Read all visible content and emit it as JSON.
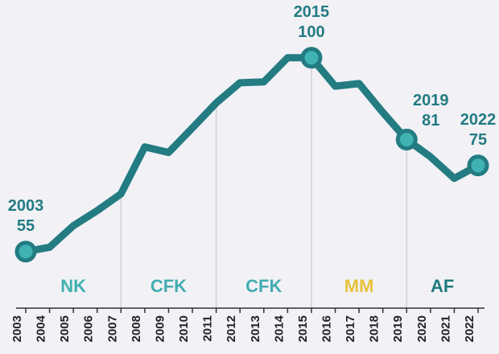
{
  "chart_data": {
    "type": "line",
    "categories": [
      "2003",
      "2004",
      "2005",
      "2006",
      "2007",
      "2008",
      "2009",
      "2010",
      "2011",
      "2012",
      "2013",
      "2014",
      "2015",
      "2016",
      "2017",
      "2018",
      "2019",
      "2020",
      "2021",
      "2022"
    ],
    "values": [
      55,
      56,
      61,
      64.5,
      68.4,
      79.3,
      78,
      83.7,
      89.5,
      94.2,
      94.4,
      100,
      100,
      93.4,
      94,
      87.3,
      81,
      77,
      72,
      75
    ],
    "color": "#237c82",
    "marker_color": "#3fb3b3",
    "ylim": [
      40,
      105
    ],
    "labeled_points": [
      0,
      12,
      16,
      19
    ],
    "periods": [
      {
        "label": "NK",
        "start": "2003",
        "end": "2007",
        "color": "#3fb0b0"
      },
      {
        "label": "CFK",
        "start": "2007",
        "end": "2011",
        "color": "#44adb0"
      },
      {
        "label": "CFK",
        "start": "2011",
        "end": "2015",
        "color": "#44adb0"
      },
      {
        "label": "MM",
        "start": "2015",
        "end": "2019",
        "color": "#e8c23a"
      },
      {
        "label": "AF",
        "start": "2019",
        "end": "2022",
        "color": "#1e7b7f"
      }
    ]
  }
}
